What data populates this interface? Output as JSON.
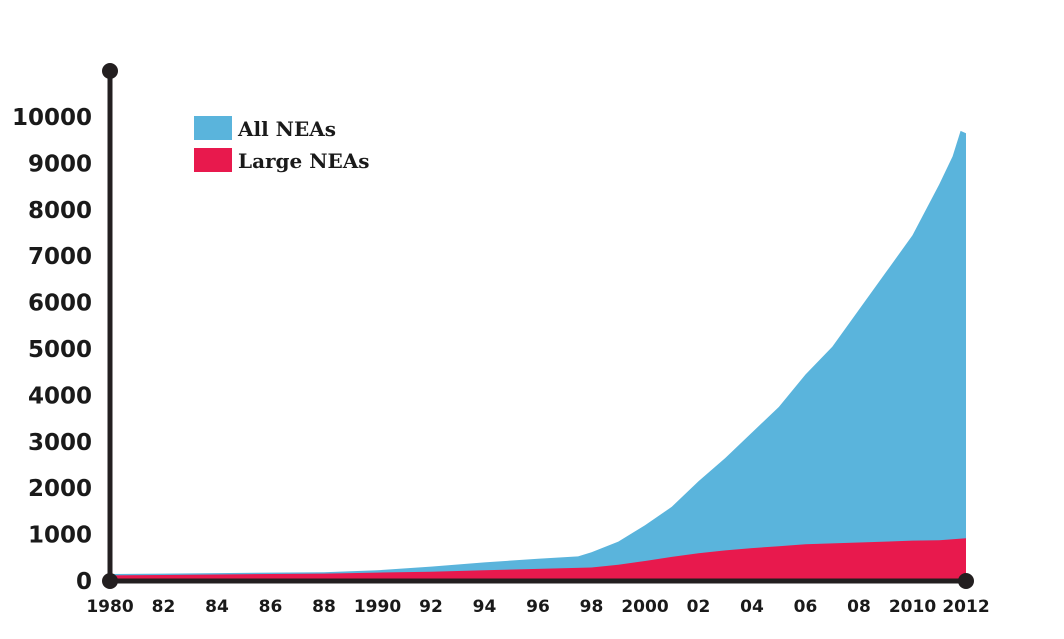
{
  "chart_data": {
    "type": "area",
    "title": "",
    "xlabel": "",
    "ylabel": "",
    "ylim": [
      0,
      10000
    ],
    "xlim": [
      1980,
      2012
    ],
    "y_ticks": [
      "0",
      "1000",
      "2000",
      "3000",
      "4000",
      "5000",
      "6000",
      "7000",
      "8000",
      "9000",
      "10000"
    ],
    "x_ticks": [
      "1980",
      "82",
      "84",
      "86",
      "88",
      "1990",
      "92",
      "94",
      "96",
      "98",
      "2000",
      "02",
      "04",
      "06",
      "08",
      "2010",
      "2012"
    ],
    "legend_position": "top-left",
    "colors": {
      "all": "#5ab4dc",
      "large": "#e8194d",
      "axis": "#231f20"
    },
    "series": [
      {
        "name": "All NEAs",
        "x": [
          1980,
          1982,
          1984,
          1986,
          1988,
          1990,
          1992,
          1994,
          1996,
          1997.5,
          1998,
          1999,
          2000,
          2001,
          2002,
          2003,
          2004,
          2005,
          2006,
          2007,
          2008,
          2009,
          2010,
          2011,
          2011.5,
          2011.8,
          2012
        ],
        "values": [
          150,
          160,
          170,
          180,
          190,
          230,
          310,
          400,
          480,
          530,
          620,
          850,
          1200,
          1600,
          2150,
          2650,
          3200,
          3750,
          4450,
          5050,
          5850,
          6650,
          7450,
          8550,
          9150,
          9700,
          9650
        ]
      },
      {
        "name": "Large NEAs",
        "x": [
          1980,
          1982,
          1984,
          1986,
          1988,
          1990,
          1992,
          1994,
          1996,
          1998,
          1999,
          2000,
          2001,
          2002,
          2003,
          2004,
          2005,
          2006,
          2007,
          2008,
          2009,
          2010,
          2011,
          2012
        ],
        "values": [
          120,
          130,
          140,
          150,
          160,
          180,
          200,
          230,
          260,
          290,
          350,
          430,
          520,
          600,
          660,
          710,
          750,
          790,
          810,
          830,
          850,
          870,
          880,
          920
        ]
      }
    ]
  }
}
